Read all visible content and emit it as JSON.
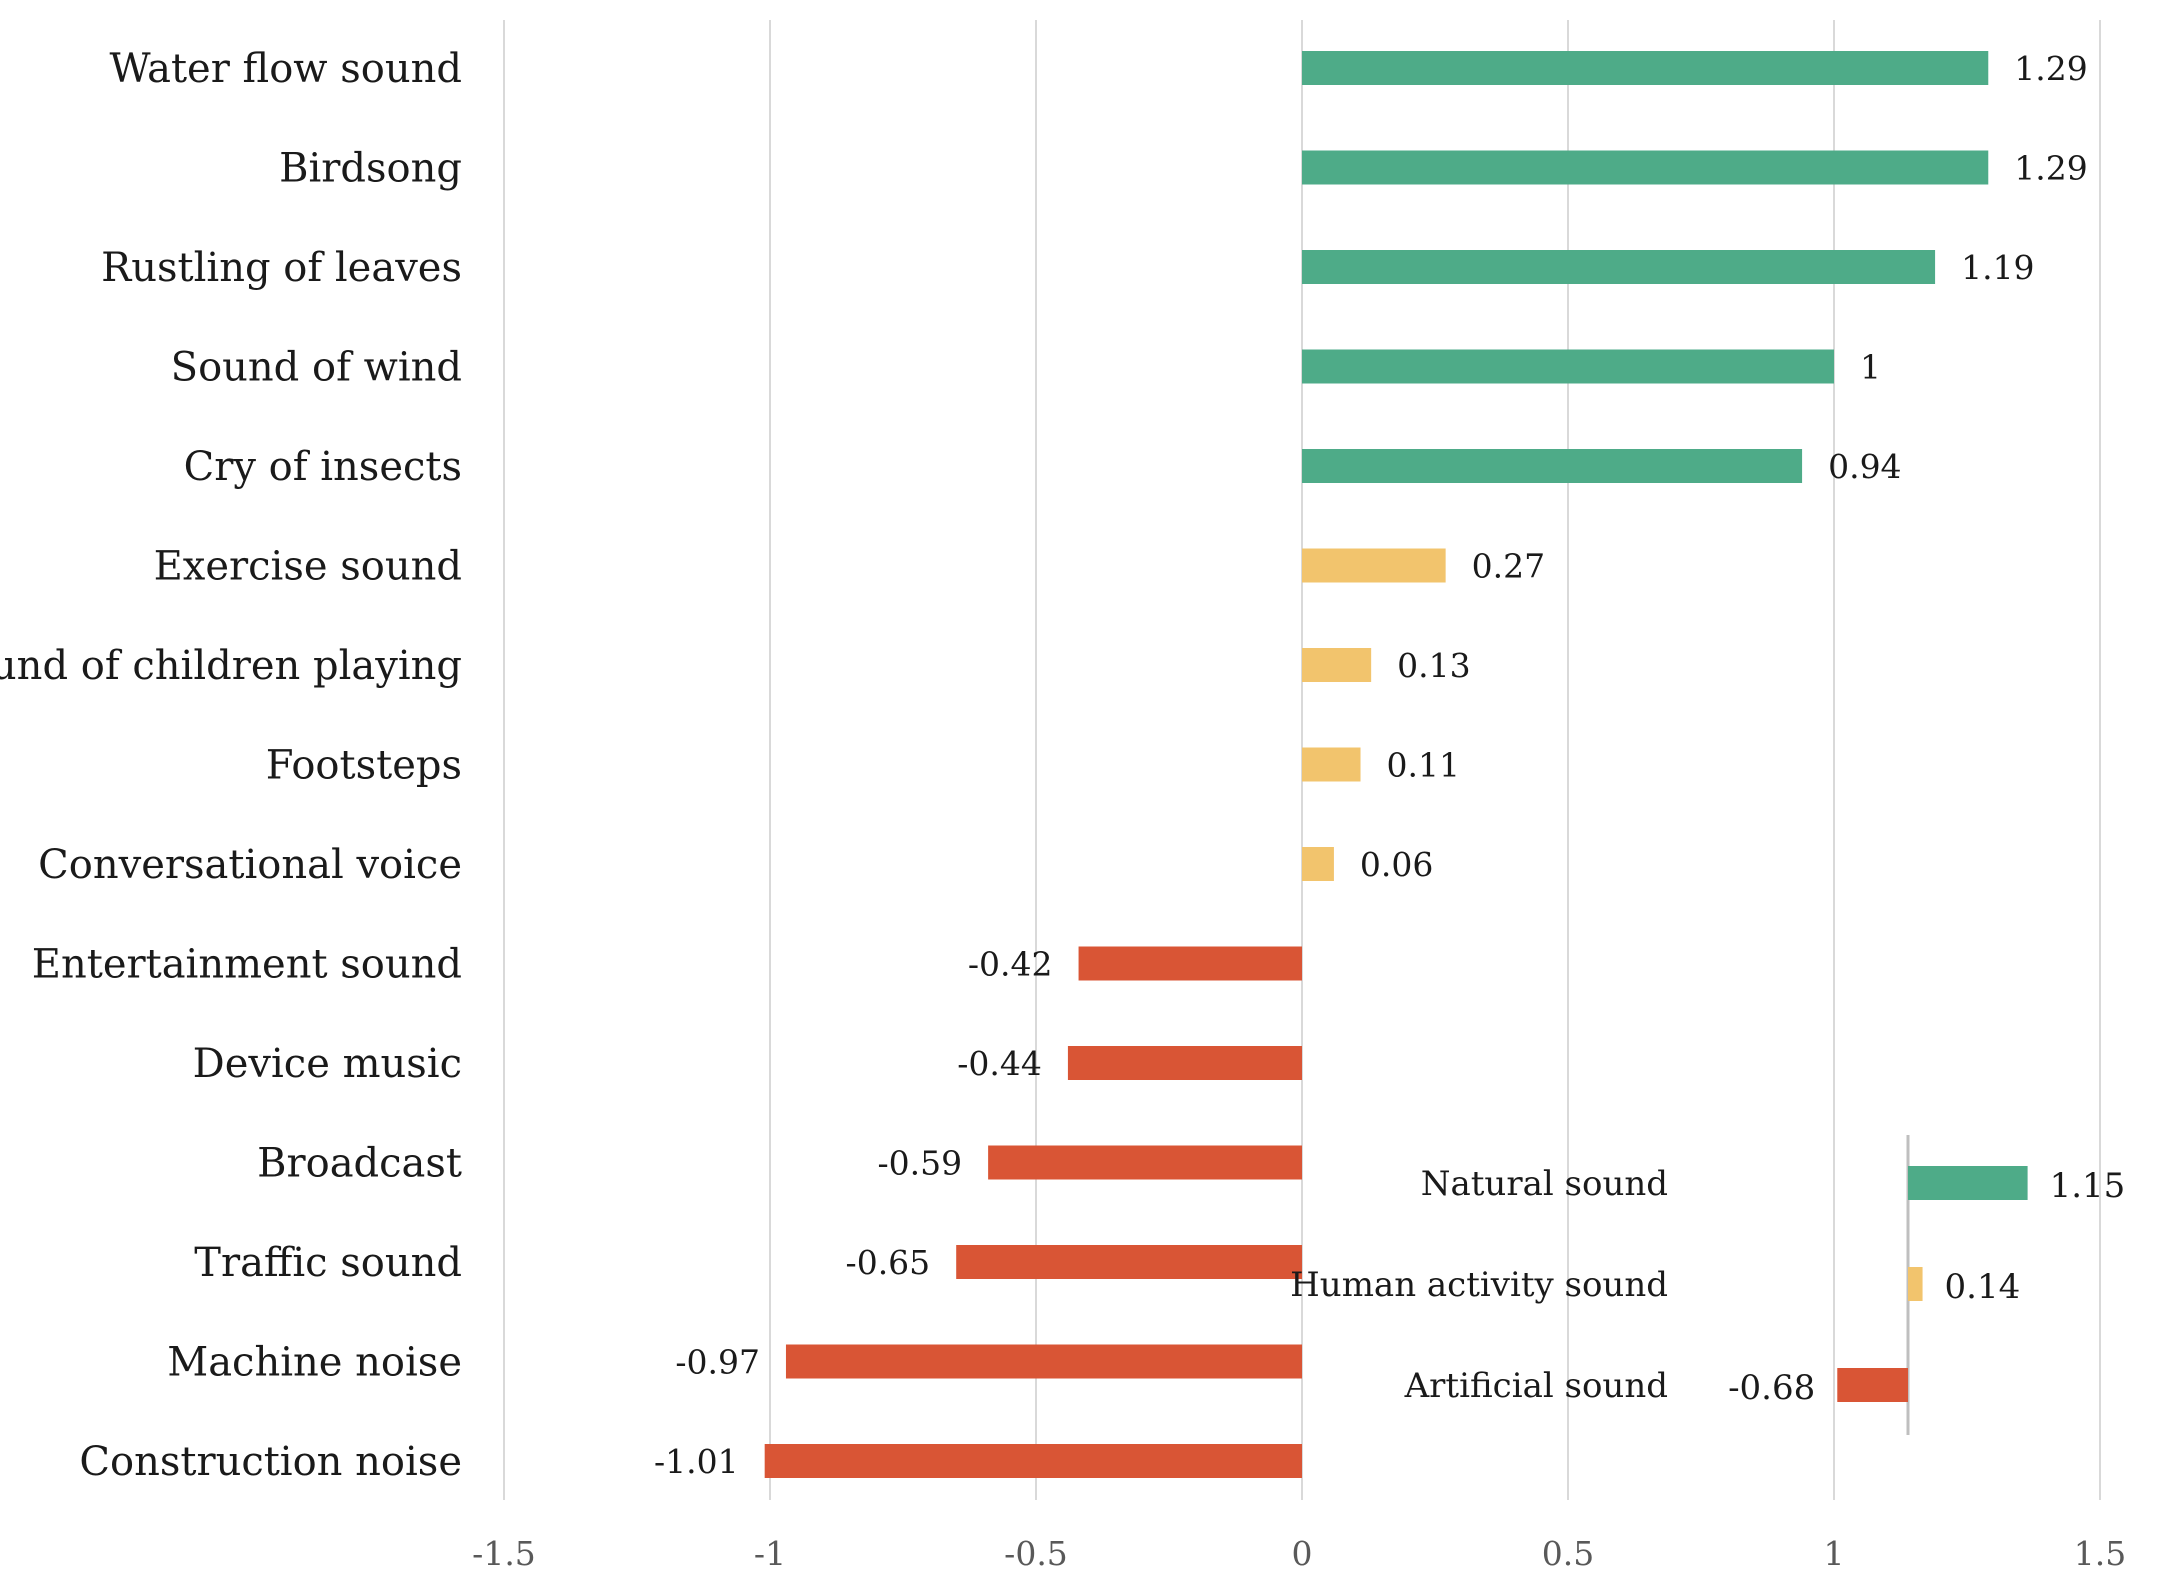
{
  "chart_data": [
    {
      "type": "bar",
      "orientation": "horizontal",
      "title": "",
      "xlabel": "",
      "ylabel": "",
      "xlim": [
        -1.5,
        1.5
      ],
      "x_ticks": [
        -1.5,
        -1,
        -0.5,
        0,
        0.5,
        1,
        1.5
      ],
      "x_tick_labels": [
        "-1.5",
        "-1",
        "-0.5",
        "0",
        "0.5",
        "1",
        "1.5"
      ],
      "grid": "vertical",
      "colors": {
        "natural": "#4eab88",
        "human": "#f2c46d",
        "artificial": "#d95535"
      },
      "categories": [
        "Water flow sound",
        "Birdsong",
        "Rustling of leaves",
        "Sound of wind",
        "Cry of insects",
        "Exercise sound",
        "Sound of children playing",
        "Footsteps",
        "Conversational voice",
        "Entertainment sound",
        "Device music",
        "Broadcast",
        "Traffic sound",
        "Machine noise",
        "Construction noise"
      ],
      "values": [
        1.29,
        1.29,
        1.19,
        1,
        0.94,
        0.27,
        0.13,
        0.11,
        0.06,
        -0.42,
        -0.44,
        -0.59,
        -0.65,
        -0.97,
        -1.01
      ],
      "value_labels": [
        "1.29",
        "1.29",
        "1.19",
        "1",
        "0.94",
        "0.27",
        "0.13",
        "0.11",
        "0.06",
        "-0.42",
        "-0.44",
        "-0.59",
        "-0.65",
        "-0.97",
        "-1.01"
      ],
      "groups": [
        "natural",
        "natural",
        "natural",
        "natural",
        "natural",
        "human",
        "human",
        "human",
        "human",
        "artificial",
        "artificial",
        "artificial",
        "artificial",
        "artificial",
        "artificial"
      ]
    },
    {
      "type": "bar",
      "orientation": "horizontal",
      "inset": true,
      "title": "",
      "categories": [
        "Natural sound",
        "Human activity sound",
        "Artificial sound"
      ],
      "values": [
        1.15,
        0.14,
        -0.68
      ],
      "value_labels": [
        "1.15",
        "0.14",
        "-0.68"
      ],
      "groups": [
        "natural",
        "human",
        "artificial"
      ]
    }
  ]
}
